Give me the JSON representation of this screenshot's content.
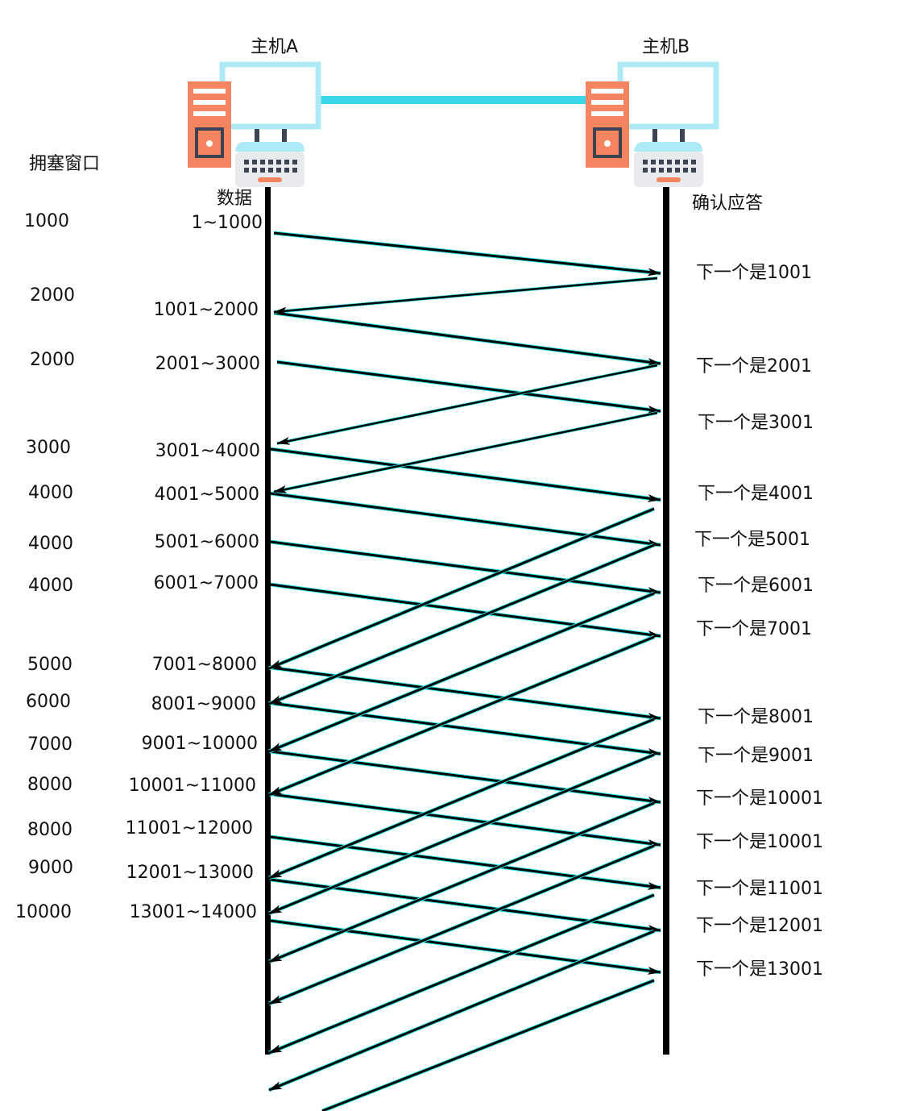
{
  "hosts": {
    "a_label": "主机A",
    "b_label": "主机B"
  },
  "headers": {
    "cwnd": "拥塞窗口",
    "data": "数据",
    "ack": "确认应答"
  },
  "colors": {
    "monitor": "#aeeaf5",
    "link": "#3dd5ea",
    "tower": "#f58560",
    "tower_detail": "#f8b39a",
    "keyboard": "#e9eaed",
    "keys": "#3c4453",
    "arrow": "#000000",
    "arrow_glow": "#2ee8f0"
  },
  "cwnd_values": [
    "1000",
    "2000",
    "2000",
    "3000",
    "4000",
    "4000",
    "4000",
    "5000",
    "6000",
    "7000",
    "8000",
    "8000",
    "9000",
    "10000"
  ],
  "data_ranges": [
    "1~1000",
    "1001~2000",
    "2001~3000",
    "3001~4000",
    "4001~5000",
    "5001~6000",
    "6001~7000",
    "7001~8000",
    "8001~9000",
    "9001~10000",
    "10001~11000",
    "11001~12000",
    "12001~13000",
    "13001~14000"
  ],
  "acks": [
    "下一个是1001",
    "下一个是2001",
    "下一个是3001",
    "下一个是4001",
    "下一个是5001",
    "下一个是6001",
    "下一个是7001",
    "下一个是8001",
    "下一个是9001",
    "下一个是10001",
    "下一个是10001",
    "下一个是11001",
    "下一个是12001",
    "下一个是13001"
  ]
}
